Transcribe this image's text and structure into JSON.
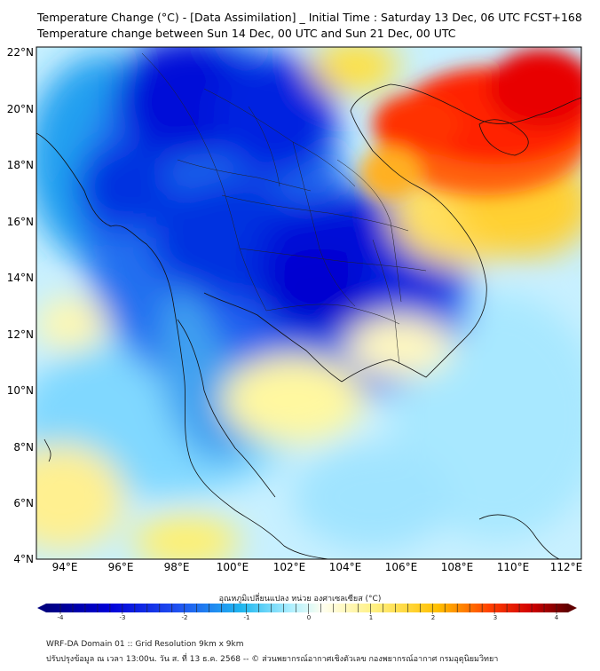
{
  "title_line1": "Temperature Change (°C) - [Data Assimilation] _ Initial Time : Saturday 13 Dec, 06 UTC FCST+168",
  "title_line2": "Temperature change between Sun 14 Dec, 00 UTC and Sun 21 Dec, 00 UTC",
  "lat_ticks": [
    "22°N",
    "20°N",
    "18°N",
    "16°N",
    "14°N",
    "12°N",
    "10°N",
    "8°N",
    "6°N",
    "4°N"
  ],
  "lon_ticks": [
    "94°E",
    "96°E",
    "98°E",
    "100°E",
    "102°E",
    "104°E",
    "106°E",
    "108°E",
    "110°E",
    "112°E"
  ],
  "colorbar": {
    "label": "อุณหภูมิเปลี่ยนแปลง หน่วย องศาเซลเซียส (°C)",
    "ticks": [
      "-4",
      "-3",
      "-2",
      "-1",
      "0",
      "1",
      "2",
      "3",
      "4"
    ],
    "range": [
      -4,
      4
    ],
    "stops": [
      "#000080",
      "#0000d8",
      "#2050f0",
      "#20b8f0",
      "#b0f0ff",
      "#fffff0",
      "#fff080",
      "#ffc000",
      "#ff4000",
      "#d00000",
      "#600000"
    ]
  },
  "footer_line1": "WRF-DA Domain 01 :: Grid Resolution 9km x 9km",
  "footer_line2": "ปรับปรุงข้อมูล ณ เวลา 13:00น. วัน ส. ที่ 13 ธ.ค. 2568 -- © ส่วนพยากรณ์อากาศเชิงตัวเลข กองพยากรณ์อากาศ กรมอุตุนิยมวิทยา",
  "colors": {
    "strong_cooling": "#0000e0",
    "warming": "#e00000",
    "neutral": "#d8f8ff"
  }
}
